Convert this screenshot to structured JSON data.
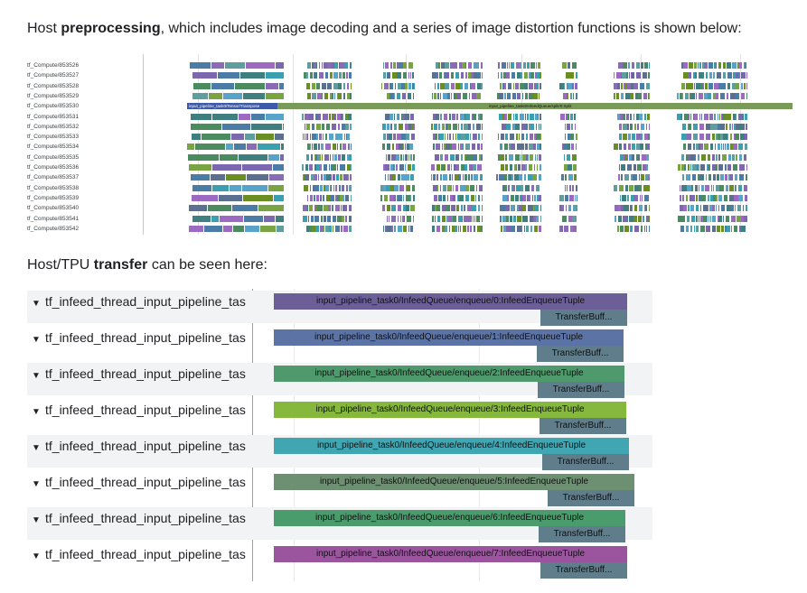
{
  "caption1": {
    "prefix": "Host ",
    "bold": "preprocessing",
    "suffix": ", which includes image decoding and a series of image distortion functions is shown below:"
  },
  "caption2": {
    "prefix": "Host/TPU ",
    "bold": "transfer",
    "suffix": " can be seen here:"
  },
  "host_trace": {
    "threads": [
      "tf_Compute/853526",
      "tf_Compute/853527",
      "tf_Compute/853528",
      "tf_Compute/853529",
      "tf_Compute/853530",
      "tf_Compute/853531",
      "tf_Compute/853532",
      "tf_Compute/853533",
      "tf_Compute/853534",
      "tf_Compute/853535",
      "tf_Compute/853536",
      "tf_Compute/853537",
      "tf_Compute/853538",
      "tf_Compute/853539",
      "tf_Compute/853540",
      "tf_Compute/853541",
      "tf_Compute/853542"
    ],
    "long_bar_label_left": "input_pipeline_task0/Tensor/Transpose",
    "long_bar_label_right": "input_pipeline_task0/InfeedQueue/split/0:Split",
    "colors": [
      "#5f9ea0",
      "#4a7ca6",
      "#6b8e23",
      "#7b68ae",
      "#3aa0b0",
      "#8a6bb5",
      "#4b8b5f",
      "#9c6ac0",
      "#5b6f8f",
      "#58a3c9",
      "#7aa344",
      "#3f7f7f"
    ]
  },
  "transfer_trace": {
    "rows": [
      {
        "name": "tf_infeed_thread_input_pipeline_tas",
        "op": "input_pipeline_task0/InfeedQueue/enqueue/0:InfeedEnqueueTuple",
        "sub": "TransferBuff...",
        "color": "#6c5f97"
      },
      {
        "name": "tf_infeed_thread_input_pipeline_tas",
        "op": "input_pipeline_task0/InfeedQueue/enqueue/1:InfeedEnqueueTuple",
        "sub": "TransferBuff...",
        "color": "#5b73a5"
      },
      {
        "name": "tf_infeed_thread_input_pipeline_tas",
        "op": "input_pipeline_task0/InfeedQueue/enqueue/2:InfeedEnqueueTuple",
        "sub": "TransferBuff...",
        "color": "#4f9a6c"
      },
      {
        "name": "tf_infeed_thread_input_pipeline_tas",
        "op": "input_pipeline_task0/InfeedQueue/enqueue/3:InfeedEnqueueTuple",
        "sub": "TransferBuff...",
        "color": "#85b83c"
      },
      {
        "name": "tf_infeed_thread_input_pipeline_tas",
        "op": "input_pipeline_task0/InfeedQueue/enqueue/4:InfeedEnqueueTuple",
        "sub": "TransferBuff...",
        "color": "#40a6b2"
      },
      {
        "name": "tf_infeed_thread_input_pipeline_tas",
        "op": "input_pipeline_task0/InfeedQueue/enqueue/5:InfeedEnqueueTuple",
        "sub": "TransferBuff...",
        "color": "#6d8f72"
      },
      {
        "name": "tf_infeed_thread_input_pipeline_tas",
        "op": "input_pipeline_task0/InfeedQueue/enqueue/6:InfeedEnqueueTuple",
        "sub": "TransferBuff...",
        "color": "#4b9c6c"
      },
      {
        "name": "tf_infeed_thread_input_pipeline_tas",
        "op": "input_pipeline_task0/InfeedQueue/enqueue/7:InfeedEnqueueTuple",
        "sub": "TransferBuff...",
        "color": "#9b559f"
      }
    ]
  }
}
